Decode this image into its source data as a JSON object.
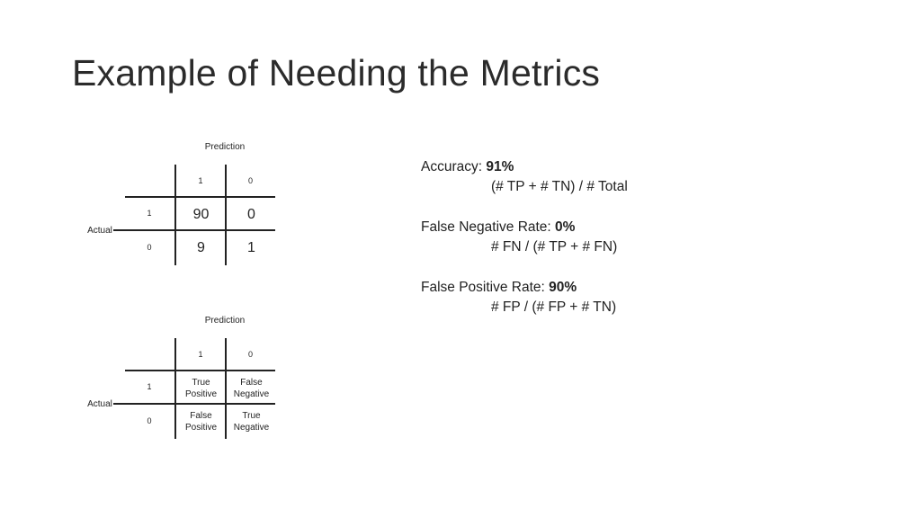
{
  "title": "Example of Needing the Metrics",
  "matrix_numeric": {
    "prediction_label": "Prediction",
    "actual_label": "Actual",
    "col_headers": [
      "1",
      "0"
    ],
    "row_headers": [
      "1",
      "0"
    ],
    "cells": [
      [
        "90",
        "0"
      ],
      [
        "9",
        "1"
      ]
    ]
  },
  "matrix_labels": {
    "prediction_label": "Prediction",
    "actual_label": "Actual",
    "col_headers": [
      "1",
      "0"
    ],
    "row_headers": [
      "1",
      "0"
    ],
    "cells": [
      [
        [
          "True",
          "Positive"
        ],
        [
          "False",
          "Negative"
        ]
      ],
      [
        [
          "False",
          "Positive"
        ],
        [
          "True",
          "Negative"
        ]
      ]
    ]
  },
  "metrics": [
    {
      "label": "Accuracy: ",
      "value": "91%",
      "formula": "(# TP + # TN) / # Total"
    },
    {
      "label": "False Negative Rate: ",
      "value": "0%",
      "formula": "# FN / (# TP + # FN)"
    },
    {
      "label": "False Positive Rate: ",
      "value": "90%",
      "formula": "# FP / (# FP + # TN)"
    }
  ]
}
